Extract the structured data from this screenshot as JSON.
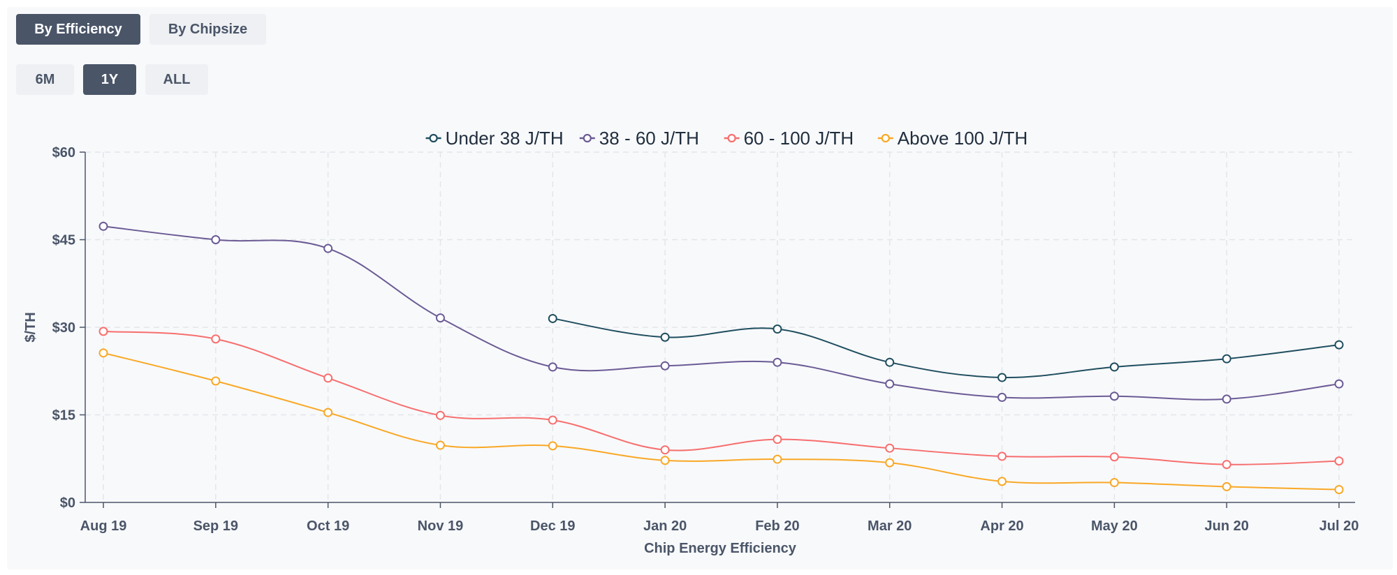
{
  "view_toggle": {
    "by_efficiency": "By Efficiency",
    "by_chipsize": "By Chipsize",
    "selected": "By Efficiency"
  },
  "range_toggle": {
    "six_month": "6M",
    "one_year": "1Y",
    "all": "ALL",
    "selected": "1Y"
  },
  "chart_data": {
    "type": "line",
    "title": "",
    "xlabel": "Chip Energy Efficiency",
    "ylabel": "$/TH",
    "categories": [
      "Aug 19",
      "Sep 19",
      "Oct 19",
      "Nov 19",
      "Dec 19",
      "Jan 20",
      "Feb 20",
      "Mar 20",
      "Apr 20",
      "May 20",
      "Jun 20",
      "Jul 20"
    ],
    "ylim": [
      0,
      60
    ],
    "yticks": [
      0,
      15,
      30,
      45,
      60
    ],
    "ytick_labels": [
      "$0",
      "$15",
      "$30",
      "$45",
      "$60"
    ],
    "grid": true,
    "legend_position": "top-center",
    "series": [
      {
        "name": "Under 38 J/TH",
        "color": "#1f4e5f",
        "values": [
          null,
          null,
          null,
          null,
          31.5,
          28.3,
          29.7,
          24.0,
          21.4,
          23.2,
          24.6,
          27.0
        ]
      },
      {
        "name": "38 - 60 J/TH",
        "color": "#6b5b95",
        "values": [
          47.3,
          45.0,
          43.5,
          31.6,
          23.2,
          23.4,
          24.0,
          20.3,
          18.0,
          18.2,
          17.7,
          20.3
        ]
      },
      {
        "name": "60 - 100 J/TH",
        "color": "#f76e6e",
        "values": [
          29.3,
          28.0,
          21.3,
          14.9,
          14.1,
          9.0,
          10.8,
          9.3,
          7.9,
          7.8,
          6.5,
          7.1
        ]
      },
      {
        "name": "Above 100 J/TH",
        "color": "#f9a825",
        "values": [
          25.6,
          20.8,
          15.4,
          9.8,
          9.7,
          7.2,
          7.4,
          6.8,
          3.6,
          3.4,
          2.7,
          2.2
        ]
      }
    ]
  }
}
